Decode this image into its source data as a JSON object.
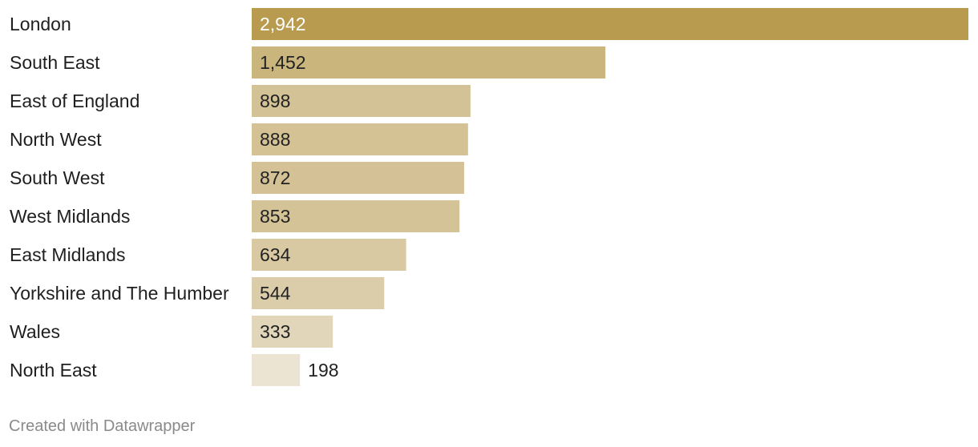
{
  "chart_data": {
    "type": "bar",
    "orientation": "horizontal",
    "categories": [
      "London",
      "South East",
      "East of England",
      "North West",
      "South West",
      "West Midlands",
      "East Midlands",
      "Yorkshire and The Humber",
      "Wales",
      "North East"
    ],
    "values": [
      2942,
      1452,
      898,
      888,
      872,
      853,
      634,
      544,
      333,
      198
    ],
    "value_labels": [
      "2,942",
      "1,452",
      "898",
      "888",
      "872",
      "853",
      "634",
      "544",
      "333",
      "198"
    ],
    "xlim": [
      0,
      2942
    ],
    "grid": false,
    "legend": "none",
    "colors": {
      "max": "#b89b4f",
      "min": "#ece4d3",
      "label_on_dark": "#ffffff",
      "label_default": "#222222"
    }
  },
  "footer": {
    "credit": "Created with Datawrapper"
  }
}
